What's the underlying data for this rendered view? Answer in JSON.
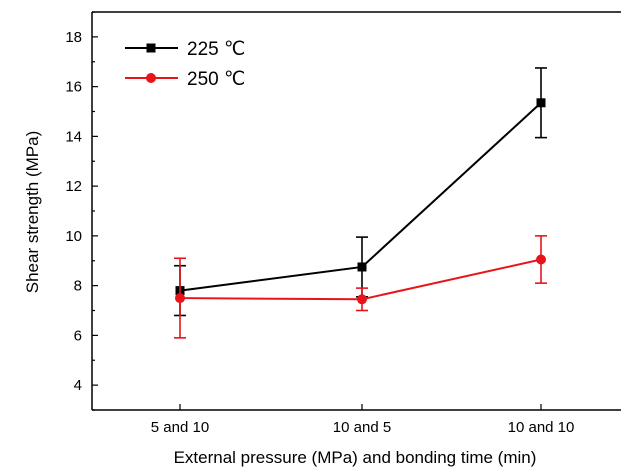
{
  "chart_data": {
    "type": "line",
    "categories": [
      "5 and 10",
      "10 and 5",
      "10 and 10"
    ],
    "xlabel": "External pressure (MPa) and bonding time (min)",
    "ylabel": "Shear strength (MPa)",
    "ylim": [
      3,
      19
    ],
    "yticks": [
      4,
      6,
      8,
      10,
      12,
      14,
      16,
      18
    ],
    "grid": false,
    "legend_position": "top-left",
    "series": [
      {
        "name": "225 ℃",
        "color": "#000000",
        "marker": "square",
        "values": [
          7.8,
          8.75,
          15.35
        ],
        "error": [
          1.0,
          1.2,
          1.4
        ]
      },
      {
        "name": "250 ℃",
        "color": "#e8141b",
        "marker": "circle",
        "values": [
          7.5,
          7.45,
          9.05
        ],
        "error": [
          1.6,
          0.45,
          0.95
        ]
      }
    ]
  }
}
